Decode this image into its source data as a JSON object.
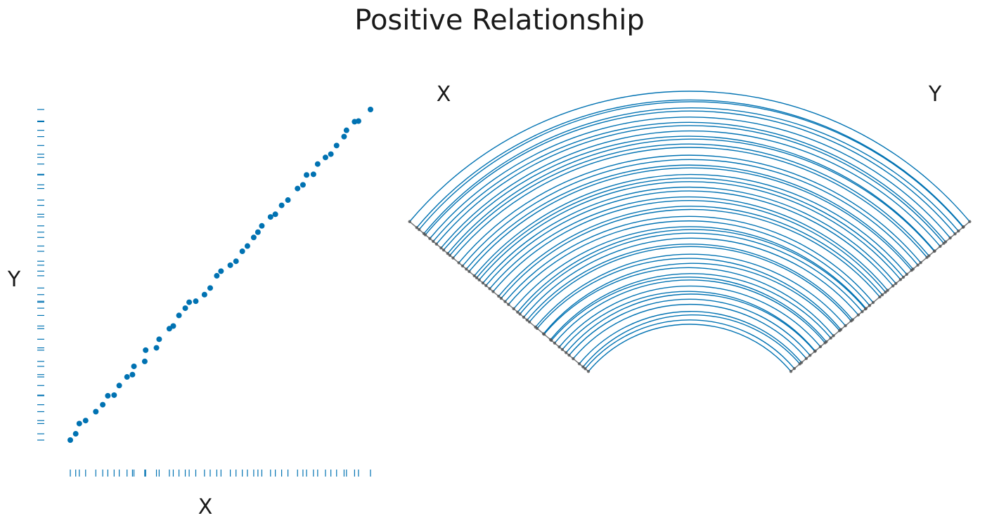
{
  "chart_data": [
    {
      "type": "scatter",
      "title": "Positive Relationship",
      "xlabel": "X",
      "ylabel": "Y",
      "xlim": [
        0,
        1
      ],
      "ylim": [
        0,
        1
      ],
      "grid": false,
      "axes_visible": false,
      "rug_plots": true,
      "point_color": "#0072b2",
      "points": [
        {
          "x": 0.0,
          "y": 0.0
        },
        {
          "x": 0.018,
          "y": 0.019
        },
        {
          "x": 0.03,
          "y": 0.05
        },
        {
          "x": 0.051,
          "y": 0.059
        },
        {
          "x": 0.085,
          "y": 0.086
        },
        {
          "x": 0.108,
          "y": 0.107
        },
        {
          "x": 0.125,
          "y": 0.134
        },
        {
          "x": 0.146,
          "y": 0.136
        },
        {
          "x": 0.163,
          "y": 0.165
        },
        {
          "x": 0.189,
          "y": 0.191
        },
        {
          "x": 0.207,
          "y": 0.198
        },
        {
          "x": 0.212,
          "y": 0.223
        },
        {
          "x": 0.248,
          "y": 0.238
        },
        {
          "x": 0.251,
          "y": 0.272
        },
        {
          "x": 0.287,
          "y": 0.279
        },
        {
          "x": 0.296,
          "y": 0.305
        },
        {
          "x": 0.33,
          "y": 0.337
        },
        {
          "x": 0.343,
          "y": 0.345
        },
        {
          "x": 0.362,
          "y": 0.377
        },
        {
          "x": 0.383,
          "y": 0.399
        },
        {
          "x": 0.396,
          "y": 0.417
        },
        {
          "x": 0.418,
          "y": 0.42
        },
        {
          "x": 0.447,
          "y": 0.44
        },
        {
          "x": 0.466,
          "y": 0.46
        },
        {
          "x": 0.488,
          "y": 0.497
        },
        {
          "x": 0.502,
          "y": 0.511
        },
        {
          "x": 0.533,
          "y": 0.529
        },
        {
          "x": 0.552,
          "y": 0.541
        },
        {
          "x": 0.573,
          "y": 0.571
        },
        {
          "x": 0.59,
          "y": 0.587
        },
        {
          "x": 0.611,
          "y": 0.613
        },
        {
          "x": 0.625,
          "y": 0.629
        },
        {
          "x": 0.638,
          "y": 0.648
        },
        {
          "x": 0.667,
          "y": 0.675
        },
        {
          "x": 0.683,
          "y": 0.683
        },
        {
          "x": 0.704,
          "y": 0.71
        },
        {
          "x": 0.725,
          "y": 0.726
        },
        {
          "x": 0.757,
          "y": 0.761
        },
        {
          "x": 0.775,
          "y": 0.772
        },
        {
          "x": 0.787,
          "y": 0.802
        },
        {
          "x": 0.81,
          "y": 0.804
        },
        {
          "x": 0.824,
          "y": 0.835
        },
        {
          "x": 0.85,
          "y": 0.855
        },
        {
          "x": 0.868,
          "y": 0.865
        },
        {
          "x": 0.887,
          "y": 0.891
        },
        {
          "x": 0.912,
          "y": 0.918
        },
        {
          "x": 0.92,
          "y": 0.937
        },
        {
          "x": 0.947,
          "y": 0.963
        },
        {
          "x": 0.96,
          "y": 0.965
        },
        {
          "x": 1.0,
          "y": 1.0
        }
      ]
    },
    {
      "type": "parallel-coordinates-arc",
      "axes": [
        "X",
        "Y"
      ],
      "link_color": "#0072b2",
      "node_color": "#555555",
      "note": "Each observation from the scatter plot is drawn as an arc connecting its X value on the left axis to its Y value on the right axis"
    }
  ]
}
